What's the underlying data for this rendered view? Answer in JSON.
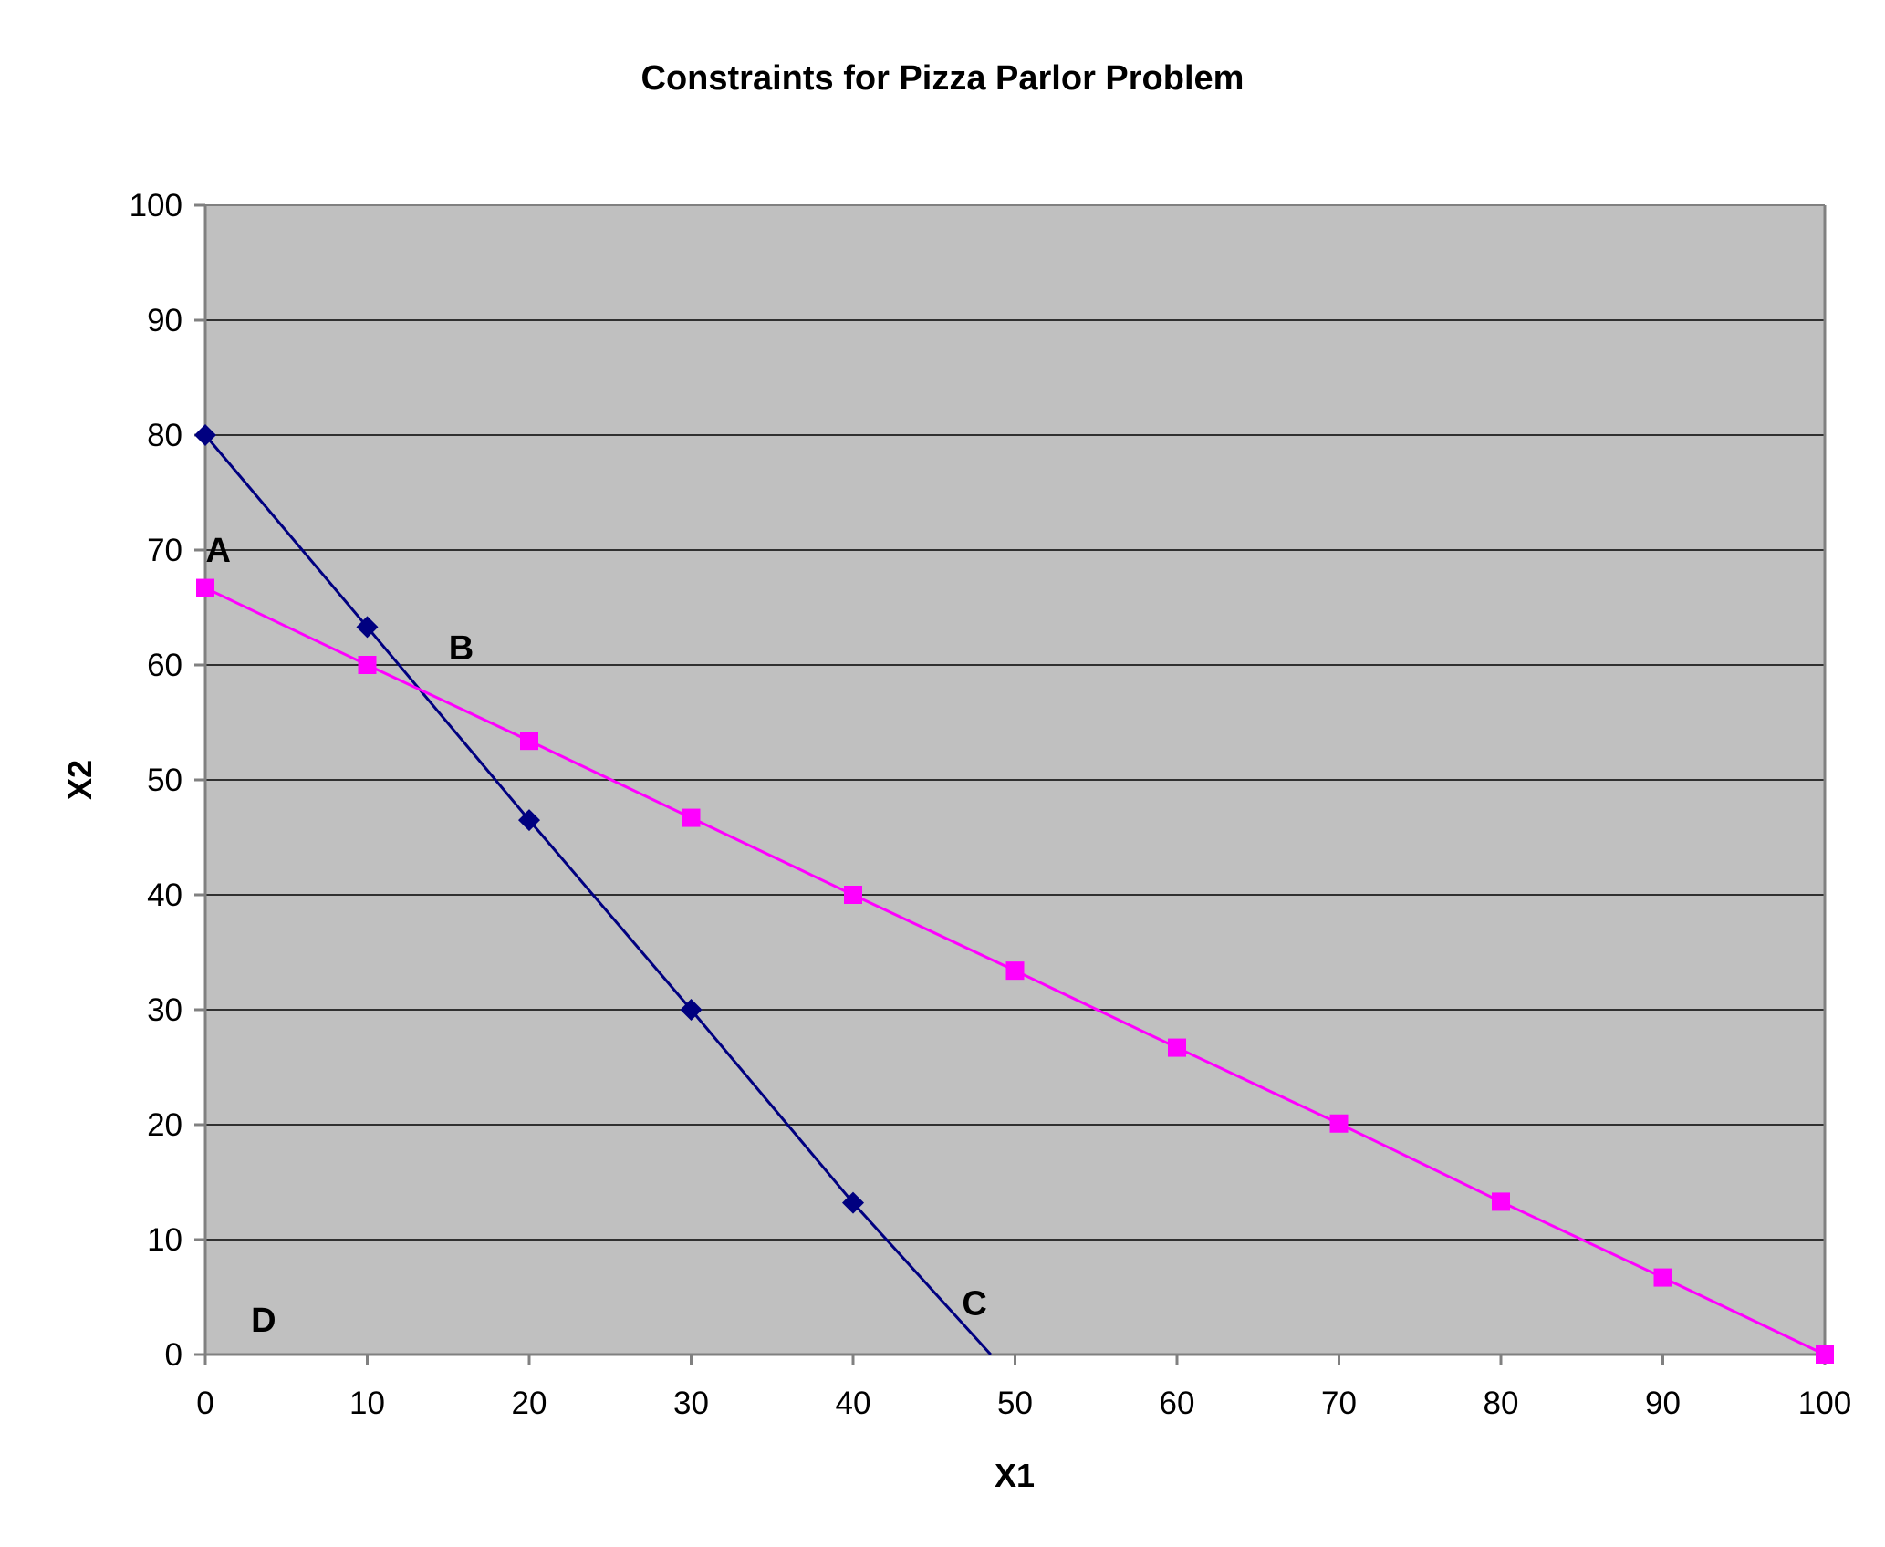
{
  "chart_data": {
    "type": "line",
    "title": "Constraints for Pizza Parlor Problem",
    "xlabel": "X1",
    "ylabel": "X2",
    "xlim": [
      0,
      100
    ],
    "ylim": [
      0,
      100
    ],
    "x_ticks": [
      "0",
      "10",
      "20",
      "30",
      "40",
      "50",
      "60",
      "70",
      "80",
      "90",
      "100"
    ],
    "y_ticks": [
      "0",
      "10",
      "20",
      "30",
      "40",
      "50",
      "60",
      "70",
      "80",
      "90",
      "100"
    ],
    "grid": "horizontal",
    "background_color": "#c0c0c0",
    "series": [
      {
        "color": "#000080",
        "marker": "diamond",
        "x": [
          0,
          10,
          20,
          30,
          40,
          48.5
        ],
        "y": [
          80,
          63.3,
          46.5,
          30,
          13.2,
          0
        ],
        "marked_points": 5
      },
      {
        "color": "#ff00ff",
        "marker": "square",
        "x": [
          0,
          10,
          20,
          30,
          40,
          50,
          60,
          70,
          80,
          90,
          100
        ],
        "y": [
          66.7,
          60,
          53.4,
          46.7,
          40,
          33.4,
          26.7,
          20.1,
          13.3,
          6.7,
          0
        ],
        "marked_points": 11
      }
    ],
    "annotations": [
      {
        "text": "A",
        "x": 0.8,
        "y": 70
      },
      {
        "text": "B",
        "x": 15.8,
        "y": 61.5
      },
      {
        "text": "C",
        "x": 47.5,
        "y": 4.5
      },
      {
        "text": "D",
        "x": 3.6,
        "y": 3
      }
    ]
  }
}
